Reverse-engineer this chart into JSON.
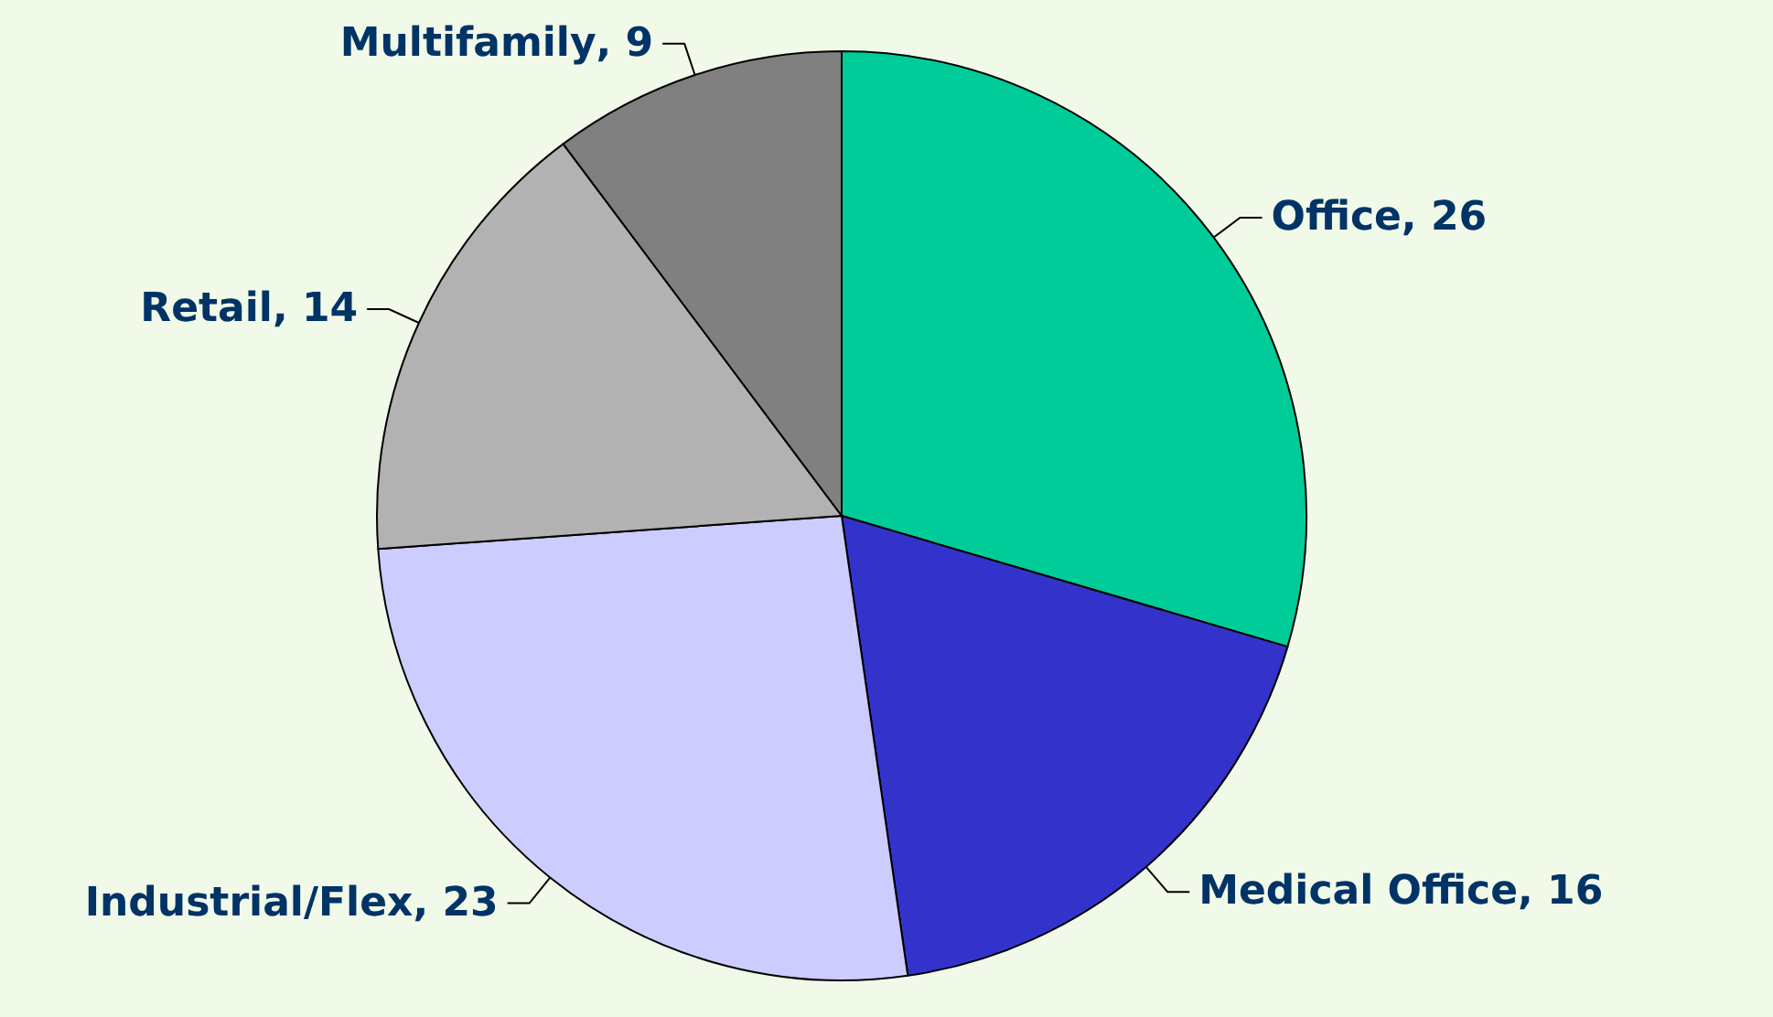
{
  "chart_data": {
    "type": "pie",
    "categories": [
      "Office",
      "Medical Office",
      "Industrial/Flex",
      "Retail",
      "Multifamily"
    ],
    "values": [
      26,
      16,
      23,
      14,
      9
    ],
    "colors": [
      "#00cc99",
      "#3333cc",
      "#ccccff",
      "#b2b2b2",
      "#808080"
    ],
    "value_labels": [
      ", 26",
      ", 16",
      ", 23",
      ", 14",
      ", 9"
    ],
    "legend": false
  }
}
